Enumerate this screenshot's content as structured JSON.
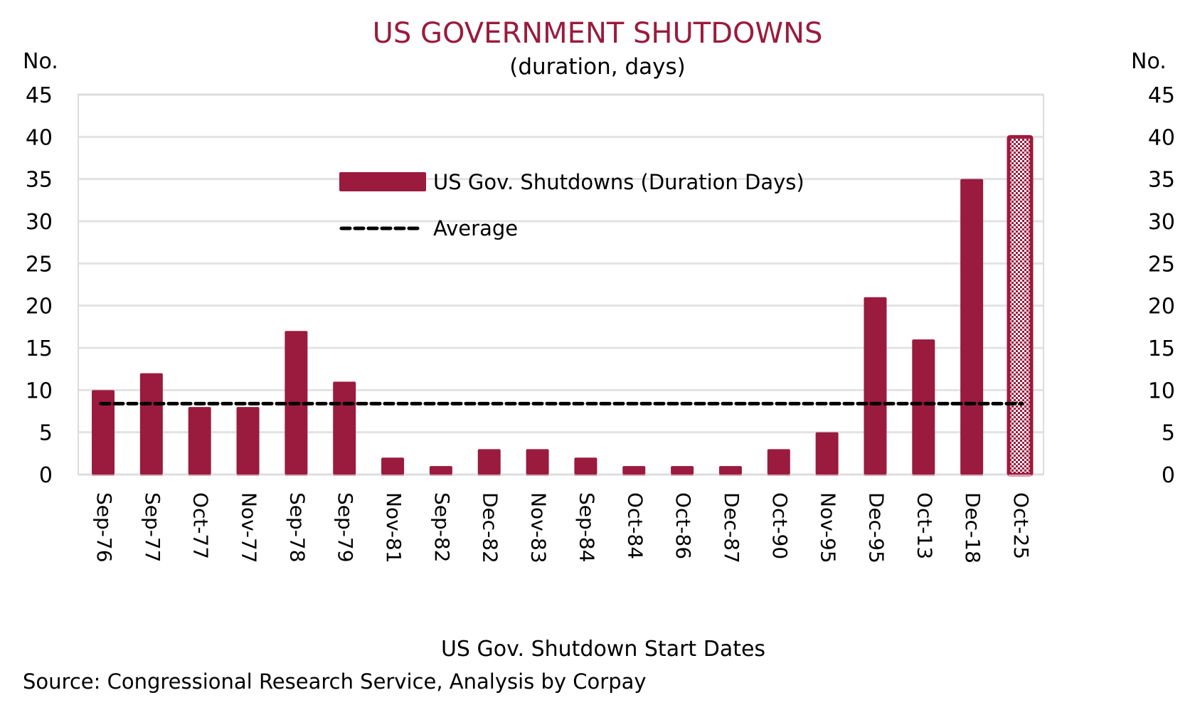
{
  "chart_data": {
    "type": "bar",
    "title": "US GOVERNMENT SHUTDOWNS",
    "subtitle": "(duration, days)",
    "xlabel": "US Gov. Shutdown Start Dates",
    "ylabel_left": "No.",
    "ylabel_right": "No.",
    "ylim": [
      0,
      45
    ],
    "yticks": [
      0,
      5,
      10,
      15,
      20,
      25,
      30,
      35,
      40,
      45
    ],
    "grid": true,
    "categories": [
      "Sep-76",
      "Sep-77",
      "Oct-77",
      "Nov-77",
      "Sep-78",
      "Sep-79",
      "Nov-81",
      "Sep-82",
      "Dec-82",
      "Nov-83",
      "Sep-84",
      "Oct-84",
      "Oct-86",
      "Dec-87",
      "Oct-90",
      "Nov-95",
      "Dec-95",
      "Oct-13",
      "Dec-18",
      "Oct-25"
    ],
    "series": [
      {
        "name": "US Gov. Shutdowns (Duration Days)",
        "type": "bar",
        "color": "#9a1b3e",
        "values": [
          10,
          12,
          8,
          8,
          17,
          11,
          2,
          1,
          3,
          3,
          2,
          1,
          1,
          1,
          3,
          5,
          21,
          16,
          35,
          40
        ],
        "hatched_categories": [
          "Oct-25"
        ]
      },
      {
        "name": "Average",
        "type": "line",
        "style": "dashed",
        "color": "#000000",
        "value": 8.4
      }
    ],
    "legend": {
      "placement": "top-center",
      "entries": [
        {
          "label": "US Gov. Shutdowns (Duration Days)",
          "marker": "bar"
        },
        {
          "label": "Average",
          "marker": "dashed-line"
        }
      ]
    },
    "source": "Source: Congressional Research Service, Analysis by Corpay"
  }
}
